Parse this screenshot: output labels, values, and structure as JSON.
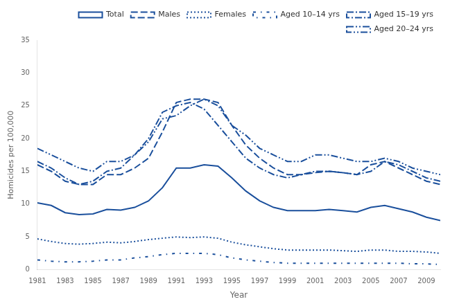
{
  "chart_data": {
    "type": "line",
    "x": [
      1981,
      1982,
      1983,
      1984,
      1985,
      1986,
      1987,
      1988,
      1989,
      1990,
      1991,
      1992,
      1993,
      1994,
      1995,
      1996,
      1997,
      1998,
      1999,
      2000,
      2001,
      2002,
      2003,
      2004,
      2005,
      2006,
      2007,
      2008,
      2009,
      2010
    ],
    "series": [
      {
        "name": "Total",
        "line_style": "solid",
        "values": [
          10.2,
          9.8,
          8.7,
          8.4,
          8.5,
          9.2,
          9.1,
          9.5,
          10.5,
          12.5,
          15.5,
          15.5,
          16.0,
          15.8,
          14.0,
          12.0,
          10.5,
          9.5,
          9.0,
          9.0,
          9.0,
          9.2,
          9.0,
          8.8,
          9.5,
          9.8,
          9.3,
          8.8,
          8.0,
          7.5
        ]
      },
      {
        "name": "Males",
        "line_style": "dashed",
        "values": [
          16.0,
          15.0,
          13.5,
          13.0,
          13.0,
          14.5,
          14.5,
          15.5,
          17.0,
          21.0,
          25.5,
          26.0,
          26.0,
          25.5,
          22.0,
          19.0,
          17.0,
          15.5,
          14.5,
          14.5,
          14.8,
          15.0,
          14.8,
          14.5,
          16.0,
          16.5,
          15.5,
          14.5,
          13.5,
          13.0
        ]
      },
      {
        "name": "Females",
        "line_style": "dotted",
        "values": [
          4.7,
          4.3,
          4.0,
          3.9,
          4.0,
          4.2,
          4.1,
          4.3,
          4.6,
          4.8,
          5.0,
          4.9,
          5.0,
          4.8,
          4.2,
          3.8,
          3.5,
          3.2,
          3.0,
          3.0,
          3.0,
          3.0,
          2.9,
          2.8,
          3.0,
          3.0,
          2.8,
          2.8,
          2.7,
          2.5
        ]
      },
      {
        "name": "Aged 10–14 yrs",
        "line_style": "loosely_dashdot",
        "values": [
          1.5,
          1.3,
          1.2,
          1.2,
          1.3,
          1.5,
          1.5,
          1.8,
          2.0,
          2.3,
          2.5,
          2.5,
          2.5,
          2.3,
          1.8,
          1.5,
          1.3,
          1.1,
          1.0,
          1.0,
          1.0,
          1.0,
          1.0,
          1.0,
          1.0,
          1.0,
          1.0,
          0.9,
          0.9,
          0.8
        ]
      },
      {
        "name": "Aged 15–19 yrs",
        "line_style": "dashdot",
        "values": [
          16.5,
          15.5,
          14.0,
          13.0,
          13.5,
          15.0,
          15.5,
          17.5,
          20.0,
          24.0,
          25.0,
          25.5,
          24.5,
          22.0,
          19.5,
          17.0,
          15.5,
          14.5,
          14.0,
          14.5,
          15.0,
          15.0,
          14.8,
          14.5,
          15.0,
          16.5,
          16.0,
          15.0,
          14.0,
          13.5
        ]
      },
      {
        "name": "Aged 20–24 yrs",
        "line_style": "dashdotdot",
        "values": [
          18.5,
          17.5,
          16.5,
          15.5,
          15.0,
          16.5,
          16.5,
          17.5,
          19.5,
          23.0,
          23.5,
          25.0,
          26.0,
          25.0,
          22.0,
          20.5,
          18.5,
          17.5,
          16.5,
          16.5,
          17.5,
          17.5,
          17.0,
          16.5,
          16.5,
          17.0,
          16.5,
          15.5,
          15.0,
          14.5
        ]
      }
    ],
    "color": "#1a4f9c",
    "xlabel": "Year",
    "ylabel": "Homicides per 100,000",
    "xlim": [
      1981,
      2010
    ],
    "xticks": [
      1981,
      1983,
      1985,
      1987,
      1989,
      1991,
      1993,
      1995,
      1997,
      1999,
      2001,
      2003,
      2005,
      2007,
      2009
    ],
    "ylim": [
      0,
      35
    ],
    "yticks": [
      0,
      5,
      10,
      15,
      20,
      25,
      30,
      35
    ],
    "grid": false,
    "legend": "upper right"
  }
}
